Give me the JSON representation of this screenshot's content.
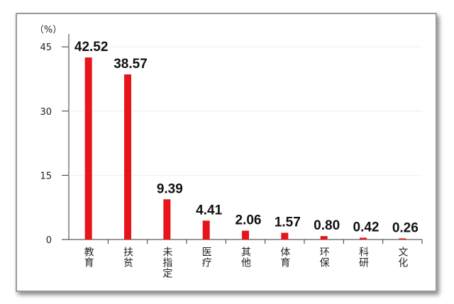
{
  "chart_data": {
    "type": "bar",
    "y_label": "（%）",
    "categories": [
      "教育",
      "扶贫",
      "未指定",
      "医疗",
      "其他",
      "体育",
      "环保",
      "科研",
      "文化"
    ],
    "values": [
      42.52,
      38.57,
      9.39,
      4.41,
      2.06,
      1.57,
      0.8,
      0.42,
      0.26
    ],
    "value_labels": [
      "42.52",
      "38.57",
      "9.39",
      "4.41",
      "2.06",
      "1.57",
      "0.80",
      "0.42",
      "0.26"
    ],
    "color": "#e8141b",
    "ylim": [
      0,
      48
    ],
    "yticks": [
      0,
      15,
      30,
      45
    ],
    "grid": true
  }
}
